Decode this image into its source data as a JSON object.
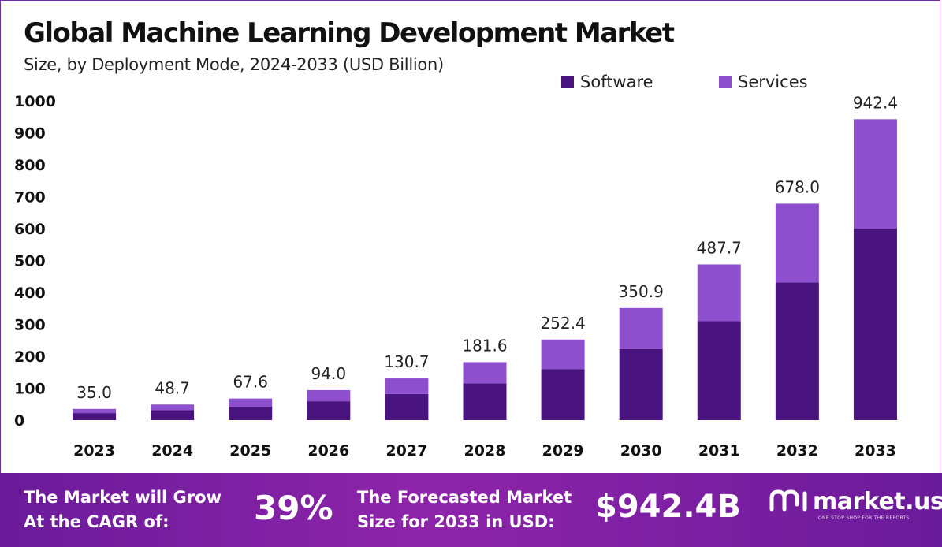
{
  "header": {
    "title": "Global Machine Learning Development Market",
    "subtitle": "Size, by Deployment Mode, 2024-2033 (USD Billion)"
  },
  "legend": [
    {
      "label": "Software",
      "color": "#4a1480"
    },
    {
      "label": "Services",
      "color": "#8e4fcf"
    }
  ],
  "chart_data": {
    "type": "bar",
    "stacked": true,
    "title": "Global Machine Learning Development Market",
    "subtitle": "Size, by Deployment Mode, 2024-2033 (USD Billion)",
    "categories": [
      "2023",
      "2024",
      "2025",
      "2026",
      "2027",
      "2028",
      "2029",
      "2030",
      "2031",
      "2032",
      "2033"
    ],
    "series": [
      {
        "name": "Software",
        "color": "#4a1480",
        "values": [
          22.0,
          31.0,
          42.0,
          59.0,
          82.0,
          115.0,
          160.0,
          223.0,
          310.0,
          431.0,
          600.0
        ]
      },
      {
        "name": "Services",
        "color": "#8e4fcf",
        "values": [
          13.0,
          17.7,
          25.6,
          35.0,
          48.7,
          66.6,
          92.4,
          127.9,
          177.7,
          247.0,
          342.4
        ]
      }
    ],
    "totals": [
      "35.0",
      "48.7",
      "67.6",
      "94.0",
      "130.7",
      "181.6",
      "252.4",
      "350.9",
      "487.7",
      "678.0",
      "942.4"
    ],
    "yticks": [
      "0",
      "100",
      "200",
      "300",
      "400",
      "500",
      "600",
      "700",
      "800",
      "900",
      "1000"
    ],
    "ylim": [
      0,
      1000
    ],
    "grid": false,
    "legend_position": "top-right"
  },
  "footer": {
    "cagr_label": "The Market will Grow\nAt the CAGR of:",
    "cagr_value": "39%",
    "forecast_label": "The Forecasted Market\nSize for 2033 in USD:",
    "forecast_value": "$942.4B",
    "logo_text": "market.us",
    "logo_tagline": "ONE STOP SHOP FOR THE REPORTS",
    "logo_icon": "market-us-logo-icon"
  }
}
